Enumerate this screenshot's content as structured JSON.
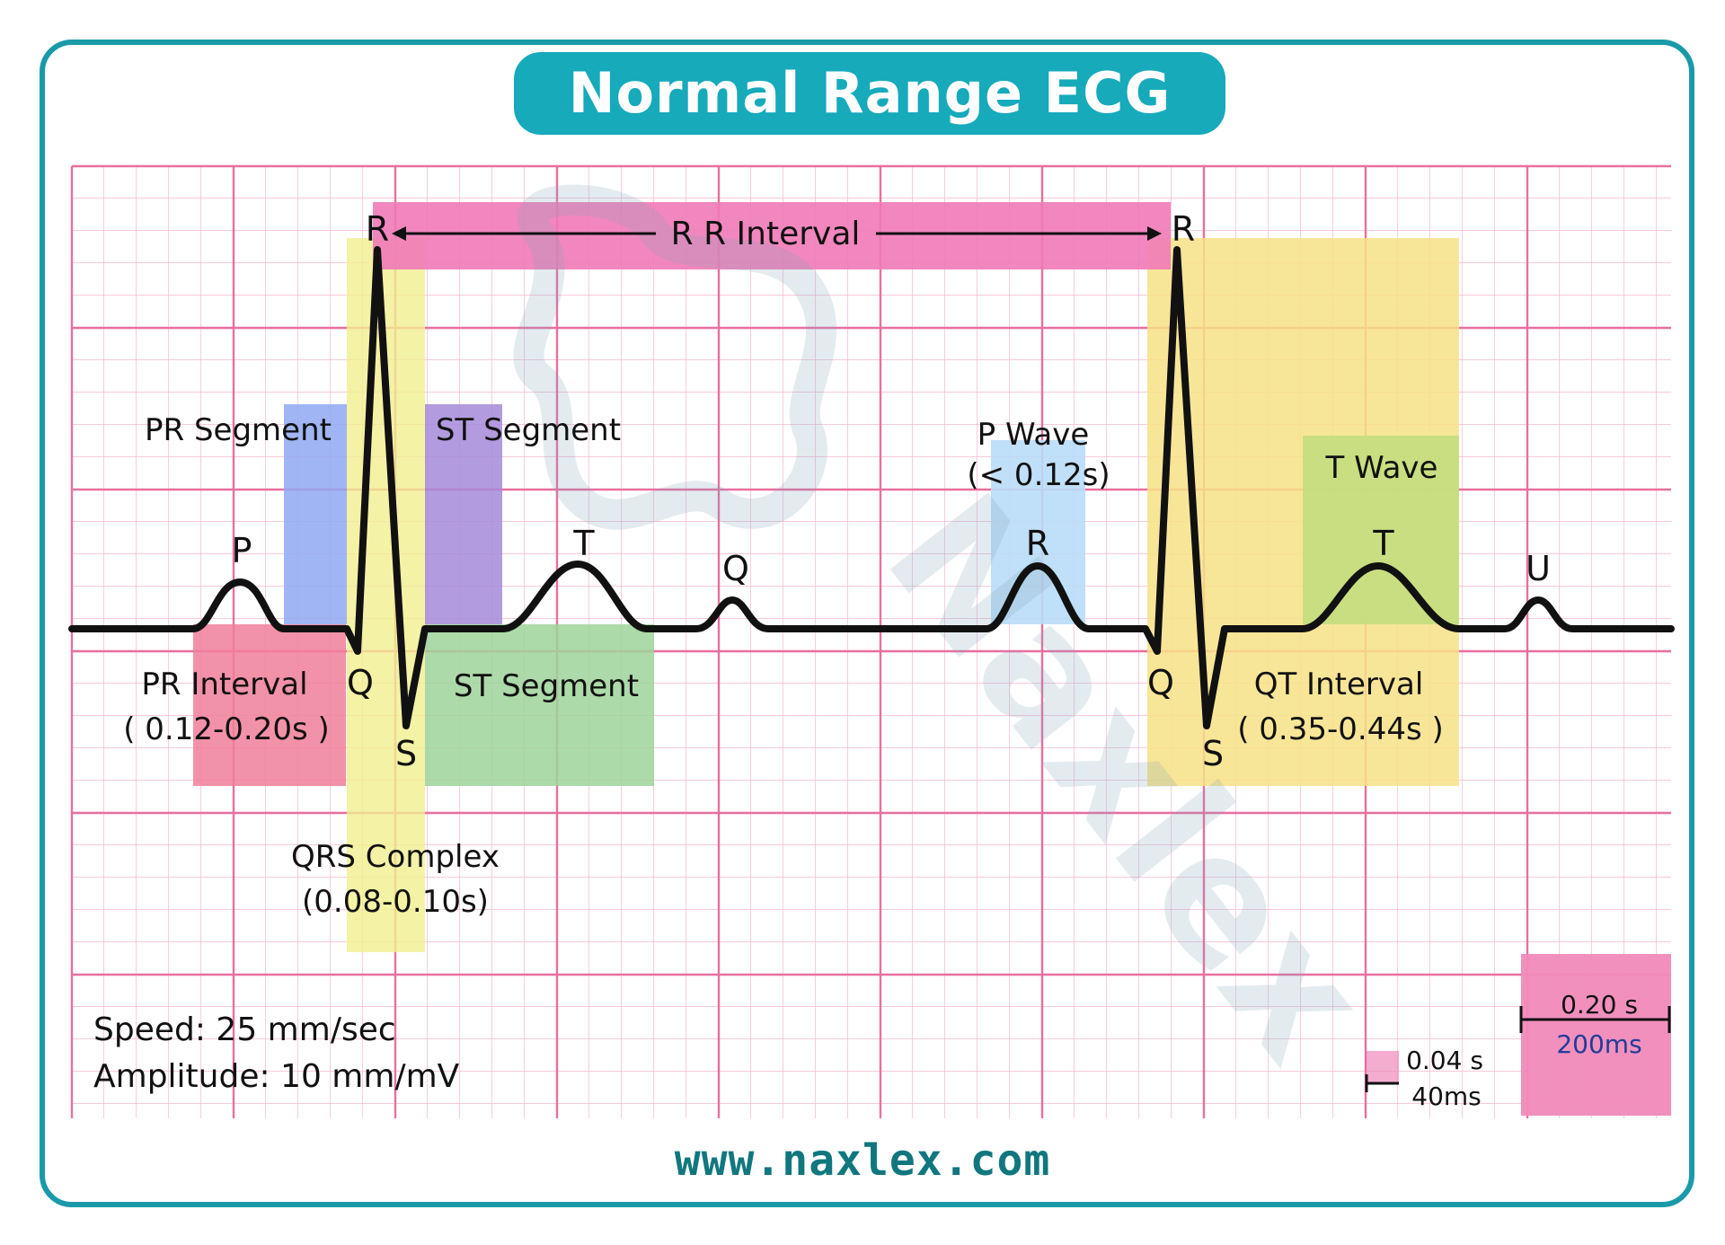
{
  "title": "Normal Range ECG",
  "footer_url": "www.naxlex.com",
  "watermark": "Naxlex",
  "colors": {
    "frame": "#1a9aa8",
    "title_bg": "#16aabb",
    "grid_minor": "#f5b8cf",
    "grid_major": "#e96fa0",
    "trace": "#111111",
    "pr_interval": "#f07f9a",
    "pr_segment": "#8fa8f2",
    "qrs": "#f1ef8e",
    "st_segment_upper": "#a58ad8",
    "st_segment_lower": "#9fd39a",
    "p_wave": "#b9dcf7",
    "t_wave": "#c3dd7e",
    "qt_interval": "#f7e286",
    "rr_bar": "#f07ab7",
    "scale_box": "#f08ab9",
    "url": "#11777f"
  },
  "wave_labels": {
    "p": "P",
    "q1": "Q",
    "r1": "R",
    "s1": "S",
    "t1": "T",
    "q_mid": "Q",
    "r_mid": "R",
    "q2": "Q",
    "r2": "R",
    "s2": "S",
    "t2": "T",
    "u": "U"
  },
  "annotations": {
    "rr_interval": "R R Interval",
    "pr_segment": "PR Segment",
    "st_segment_top": "ST Segment",
    "st_segment_bottom": "ST Segment",
    "pr_interval": "PR Interval",
    "pr_interval_range": "( 0.12-0.20s )",
    "qrs_complex": "QRS Complex",
    "qrs_range": "(0.08-0.10s)",
    "p_wave": "P Wave",
    "p_wave_range": "(< 0.12s)",
    "t_wave": "T Wave",
    "qt_interval": "QT Interval",
    "qt_range": "( 0.35-0.44s )"
  },
  "settings": {
    "speed": "Speed: 25 mm/sec",
    "amplitude": "Amplitude: 10 mm/mV"
  },
  "scale": {
    "small_time": "0.04 s",
    "small_ms": "40ms",
    "large_time": "0.20 s",
    "large_ms": "200ms"
  }
}
